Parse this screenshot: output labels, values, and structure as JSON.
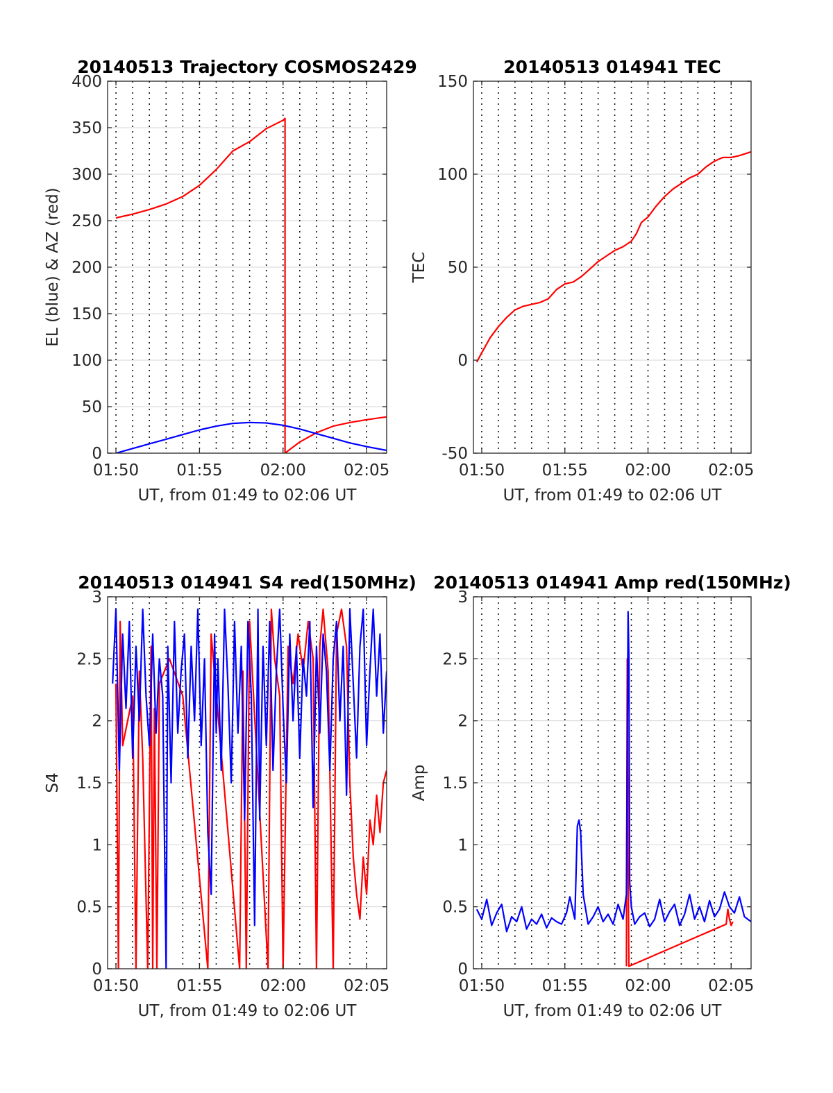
{
  "chart_data": [
    {
      "id": "trajectory",
      "type": "line",
      "title": "20140513 Trajectory COSMOS2429",
      "xlabel": "UT, from 01:49 to 02:06 UT",
      "ylabel": "EL (blue) & AZ (red)",
      "xlim": [
        109.5,
        126.2
      ],
      "ylim": [
        0,
        400
      ],
      "yticks": [
        0,
        50,
        100,
        150,
        200,
        250,
        300,
        350,
        400
      ],
      "xticks": [
        {
          "v": 110,
          "label": "01:50"
        },
        {
          "v": 115,
          "label": "01:55"
        },
        {
          "v": 120,
          "label": "02:00"
        },
        {
          "v": 125,
          "label": "02:05"
        }
      ],
      "vgrid_minutes": [
        110,
        111,
        112,
        113,
        114,
        115,
        116,
        117,
        118,
        119,
        120,
        121,
        122,
        123,
        124,
        125
      ],
      "grid": "on",
      "series": [
        {
          "name": "AZ",
          "color": "#ff0000",
          "x": [
            110,
            111,
            112,
            113,
            114,
            115,
            116,
            117,
            118,
            119,
            120,
            120.12,
            120.12,
            121,
            122,
            123,
            124,
            125,
            126.2
          ],
          "y": [
            253,
            257,
            262,
            268,
            276,
            288,
            305,
            325,
            335,
            349,
            358,
            360,
            0,
            12,
            22,
            29,
            33,
            36,
            39
          ]
        },
        {
          "name": "EL",
          "color": "#0000ff",
          "x": [
            110,
            111,
            112,
            113,
            114,
            115,
            116,
            117,
            118,
            119,
            120,
            121,
            122,
            123,
            124,
            125,
            126.2
          ],
          "y": [
            0,
            5,
            10,
            15,
            20,
            25,
            29,
            32,
            33,
            32.5,
            30,
            26,
            21,
            16,
            11,
            7,
            3
          ]
        }
      ]
    },
    {
      "id": "tec",
      "type": "line",
      "title": "20140513 014941 TEC",
      "xlabel": "UT, from 01:49 to 02:06 UT",
      "ylabel": "TEC",
      "xlim": [
        109.5,
        126.2
      ],
      "ylim": [
        -50,
        150
      ],
      "yticks": [
        -50,
        0,
        50,
        100,
        150
      ],
      "xticks": [
        {
          "v": 110,
          "label": "01:50"
        },
        {
          "v": 115,
          "label": "01:55"
        },
        {
          "v": 120,
          "label": "02:00"
        },
        {
          "v": 125,
          "label": "02:05"
        }
      ],
      "vgrid_minutes": [
        110,
        111,
        112,
        113,
        114,
        115,
        116,
        117,
        118,
        119,
        120,
        121,
        122,
        123,
        124,
        125
      ],
      "grid": "on",
      "series": [
        {
          "name": "TEC",
          "color": "#ff0000",
          "x": [
            109.7,
            110,
            110.5,
            111,
            111.5,
            112,
            112.5,
            113,
            113.5,
            114,
            114.5,
            115,
            115.5,
            116,
            116.5,
            117,
            117.5,
            118,
            118.5,
            119,
            119.3,
            119.6,
            120,
            120.5,
            121,
            121.5,
            122,
            122.5,
            123,
            123.5,
            124,
            124.5,
            125,
            125.5,
            126.2
          ],
          "y": [
            -1,
            4,
            12,
            18,
            23,
            27,
            29,
            30,
            31,
            33,
            38,
            41,
            42,
            45,
            49,
            53,
            56,
            59,
            61,
            64,
            68,
            74,
            77,
            83,
            88,
            92,
            95,
            98,
            100,
            104,
            107,
            109,
            109,
            110,
            112
          ]
        }
      ]
    },
    {
      "id": "s4",
      "type": "line",
      "title": "20140513 014941 S4 red(150MHz)",
      "xlabel": "UT, from 01:49 to 02:06 UT",
      "ylabel": "S4",
      "xlim": [
        109.5,
        126.2
      ],
      "ylim": [
        0,
        3
      ],
      "yticks": [
        0,
        0.5,
        1,
        1.5,
        2,
        2.5,
        3
      ],
      "xticks": [
        {
          "v": 110,
          "label": "01:50"
        },
        {
          "v": 115,
          "label": "01:55"
        },
        {
          "v": 120,
          "label": "02:00"
        },
        {
          "v": 125,
          "label": "02:05"
        }
      ],
      "vgrid_minutes": [
        110,
        111,
        112,
        113,
        114,
        115,
        116,
        117,
        118,
        119,
        120,
        121,
        122,
        123,
        124,
        125
      ],
      "grid": "on",
      "series": [
        {
          "name": "S4 red",
          "color": "#ff0000",
          "x": [
            110.0,
            110.15,
            110.25,
            110.4,
            111.0,
            111.2,
            111.4,
            111.6,
            111.9,
            112.1,
            112.2,
            112.3,
            112.45,
            112.6,
            113.2,
            114.0,
            115.5,
            115.7,
            117.4,
            117.6,
            117.8,
            118.0,
            119.1,
            119.3,
            119.5,
            119.8,
            120.0,
            120.3,
            120.6,
            120.9,
            121.2,
            121.5,
            121.8,
            122.0,
            122.2,
            122.4,
            122.7,
            123.0,
            123.2,
            123.5,
            123.8,
            124.0,
            124.2,
            124.4,
            124.6,
            124.8,
            125.0,
            125.2,
            125.4,
            125.6,
            125.8,
            126.0,
            126.2
          ],
          "y": [
            2.3,
            0.0,
            2.8,
            1.8,
            2.2,
            0.0,
            2.4,
            1.7,
            0.0,
            2.6,
            0.0,
            2.1,
            0.0,
            2.3,
            2.5,
            2.2,
            0.0,
            2.7,
            0.0,
            2.4,
            0.0,
            2.8,
            0.0,
            2.9,
            2.5,
            2.2,
            0.0,
            2.6,
            2.3,
            2.7,
            2.4,
            2.8,
            2.5,
            0.0,
            2.6,
            2.9,
            2.4,
            0.0,
            2.7,
            2.9,
            2.6,
            1.5,
            0.9,
            0.6,
            0.4,
            0.9,
            0.6,
            1.2,
            1.0,
            1.4,
            1.1,
            1.5,
            1.6
          ]
        },
        {
          "name": "S4 blue",
          "color": "#0000ff",
          "x": [
            109.8,
            110.0,
            110.2,
            110.4,
            110.6,
            110.8,
            111.0,
            111.2,
            111.4,
            111.6,
            111.8,
            112.0,
            112.2,
            112.4,
            112.6,
            112.8,
            113.0,
            113.1,
            113.3,
            113.5,
            113.7,
            113.9,
            114.1,
            114.3,
            114.5,
            114.7,
            114.9,
            115.1,
            115.3,
            115.5,
            115.7,
            115.9,
            116.0,
            116.1,
            116.3,
            116.5,
            116.7,
            116.9,
            117.1,
            117.3,
            117.5,
            117.7,
            117.9,
            118.1,
            118.3,
            118.5,
            118.6,
            118.8,
            119.0,
            119.2,
            119.4,
            119.6,
            119.8,
            120.0,
            120.2,
            120.4,
            120.6,
            120.8,
            121.0,
            121.2,
            121.4,
            121.6,
            121.8,
            122.0,
            122.2,
            122.4,
            122.6,
            122.8,
            123.0,
            123.2,
            123.4,
            123.6,
            123.8,
            124.0,
            124.2,
            124.4,
            124.6,
            124.8,
            125.0,
            125.2,
            125.4,
            125.6,
            125.8,
            126.0,
            126.2
          ],
          "y": [
            2.3,
            2.9,
            1.6,
            2.7,
            2.1,
            2.8,
            1.7,
            2.6,
            2.0,
            2.9,
            2.2,
            1.8,
            2.7,
            1.9,
            2.5,
            2.2,
            0.0,
            2.6,
            1.5,
            2.8,
            1.9,
            2.4,
            2.7,
            1.7,
            2.6,
            2.0,
            2.9,
            1.8,
            2.5,
            1.1,
            0.6,
            2.7,
            1.9,
            2.5,
            1.6,
            2.9,
            2.3,
            1.5,
            2.8,
            1.9,
            2.6,
            1.2,
            2.8,
            2.2,
            0.35,
            2.9,
            1.2,
            2.6,
            1.8,
            2.8,
            1.6,
            2.4,
            2.9,
            2.1,
            1.5,
            2.7,
            2.0,
            2.6,
            1.7,
            2.5,
            2.2,
            2.8,
            1.3,
            2.6,
            1.9,
            2.7,
            2.4,
            1.6,
            2.5,
            2.8,
            2.0,
            2.6,
            1.4,
            2.9,
            2.3,
            1.7,
            2.6,
            2.9,
            1.8,
            2.4,
            2.9,
            2.2,
            2.7,
            1.9,
            2.4
          ]
        }
      ]
    },
    {
      "id": "amp",
      "type": "line",
      "title": "20140513 014941 Amp red(150MHz)",
      "xlabel": "UT, from 01:49 to 02:06 UT",
      "ylabel": "Amp",
      "xlim": [
        109.5,
        126.2
      ],
      "ylim": [
        0,
        3
      ],
      "yticks": [
        0,
        0.5,
        1,
        1.5,
        2,
        2.5,
        3
      ],
      "xticks": [
        {
          "v": 110,
          "label": "01:50"
        },
        {
          "v": 115,
          "label": "01:55"
        },
        {
          "v": 120,
          "label": "02:00"
        },
        {
          "v": 125,
          "label": "02:05"
        }
      ],
      "vgrid_minutes": [
        110,
        111,
        112,
        113,
        114,
        115,
        116,
        117,
        118,
        119,
        120,
        121,
        122,
        123,
        124,
        125
      ],
      "grid": "on",
      "series": [
        {
          "name": "Amp red",
          "color": "#ff0000",
          "x": [
            118.7,
            118.75,
            118.8,
            118.85,
            124.7,
            124.8,
            124.9,
            125.0,
            125.1
          ],
          "y": [
            0.02,
            2.5,
            0.9,
            0.02,
            0.36,
            0.48,
            0.4,
            0.35,
            0.38
          ]
        },
        {
          "name": "Amp blue",
          "color": "#0000ff",
          "x": [
            109.7,
            110.0,
            110.3,
            110.6,
            110.9,
            111.2,
            111.5,
            111.8,
            112.1,
            112.4,
            112.7,
            113.0,
            113.3,
            113.6,
            113.9,
            114.2,
            114.5,
            114.8,
            115.1,
            115.3,
            115.6,
            115.75,
            115.85,
            115.95,
            116.1,
            116.4,
            116.7,
            117.0,
            117.3,
            117.6,
            117.9,
            118.2,
            118.5,
            118.7,
            118.8,
            118.85,
            118.9,
            119.0,
            119.2,
            119.5,
            119.8,
            120.1,
            120.4,
            120.7,
            121.0,
            121.3,
            121.6,
            121.9,
            122.2,
            122.5,
            122.8,
            123.1,
            123.4,
            123.7,
            124.0,
            124.3,
            124.6,
            124.9,
            125.2,
            125.5,
            125.8,
            126.2
          ],
          "y": [
            0.48,
            0.4,
            0.56,
            0.35,
            0.45,
            0.52,
            0.3,
            0.42,
            0.38,
            0.5,
            0.32,
            0.4,
            0.36,
            0.44,
            0.33,
            0.41,
            0.38,
            0.36,
            0.45,
            0.58,
            0.4,
            1.15,
            1.2,
            1.1,
            0.6,
            0.36,
            0.42,
            0.5,
            0.38,
            0.44,
            0.36,
            0.52,
            0.4,
            0.6,
            2.88,
            2.5,
            0.7,
            0.5,
            0.36,
            0.42,
            0.45,
            0.34,
            0.4,
            0.56,
            0.38,
            0.46,
            0.52,
            0.35,
            0.44,
            0.6,
            0.4,
            0.5,
            0.38,
            0.55,
            0.42,
            0.48,
            0.62,
            0.5,
            0.45,
            0.58,
            0.42,
            0.38
          ]
        }
      ]
    }
  ]
}
